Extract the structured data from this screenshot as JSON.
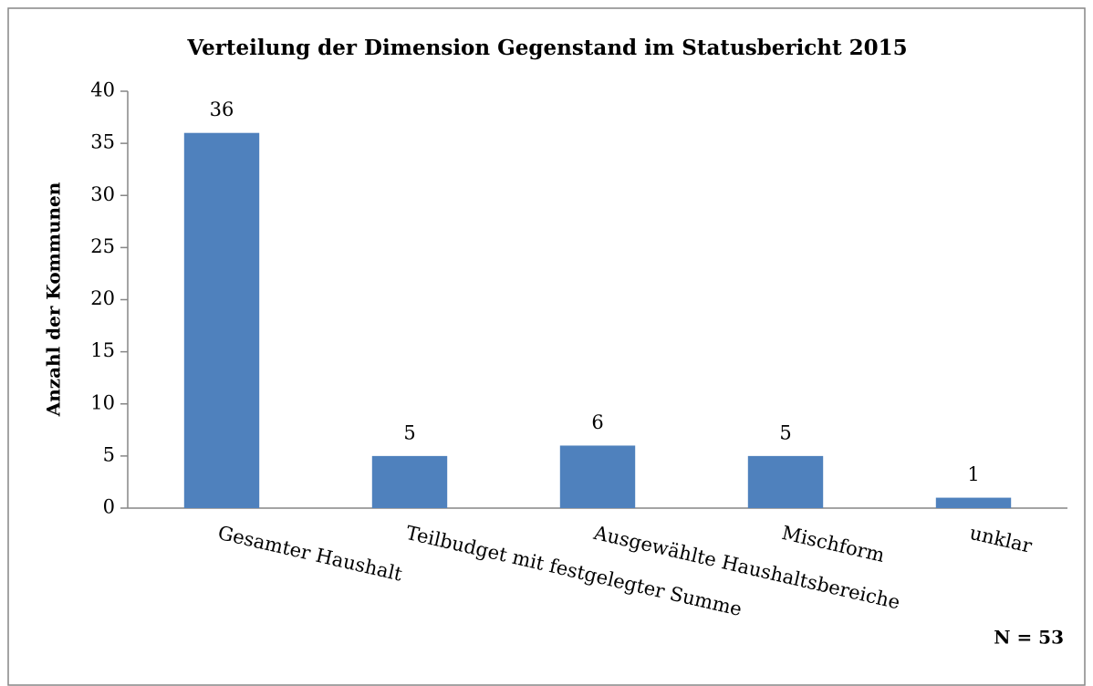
{
  "chart_data": {
    "type": "bar",
    "title": "Verteilung der Dimension Gegenstand im Statusbericht 2015",
    "y_label": "Anzahl der Kommunen",
    "annotation": "N = 53",
    "categories": [
      "Gesamter Haushalt",
      "Teilbudget mit festgelegter Summe",
      "Ausgewählte Haushaltsbereiche",
      "Mischform",
      "unklar"
    ],
    "values": [
      36,
      5,
      6,
      5,
      1
    ],
    "color": "#4f81bd",
    "ylim": [
      0,
      40
    ],
    "yticks": [
      0,
      5,
      10,
      15,
      20,
      25,
      30,
      35,
      40
    ],
    "grid": false
  }
}
